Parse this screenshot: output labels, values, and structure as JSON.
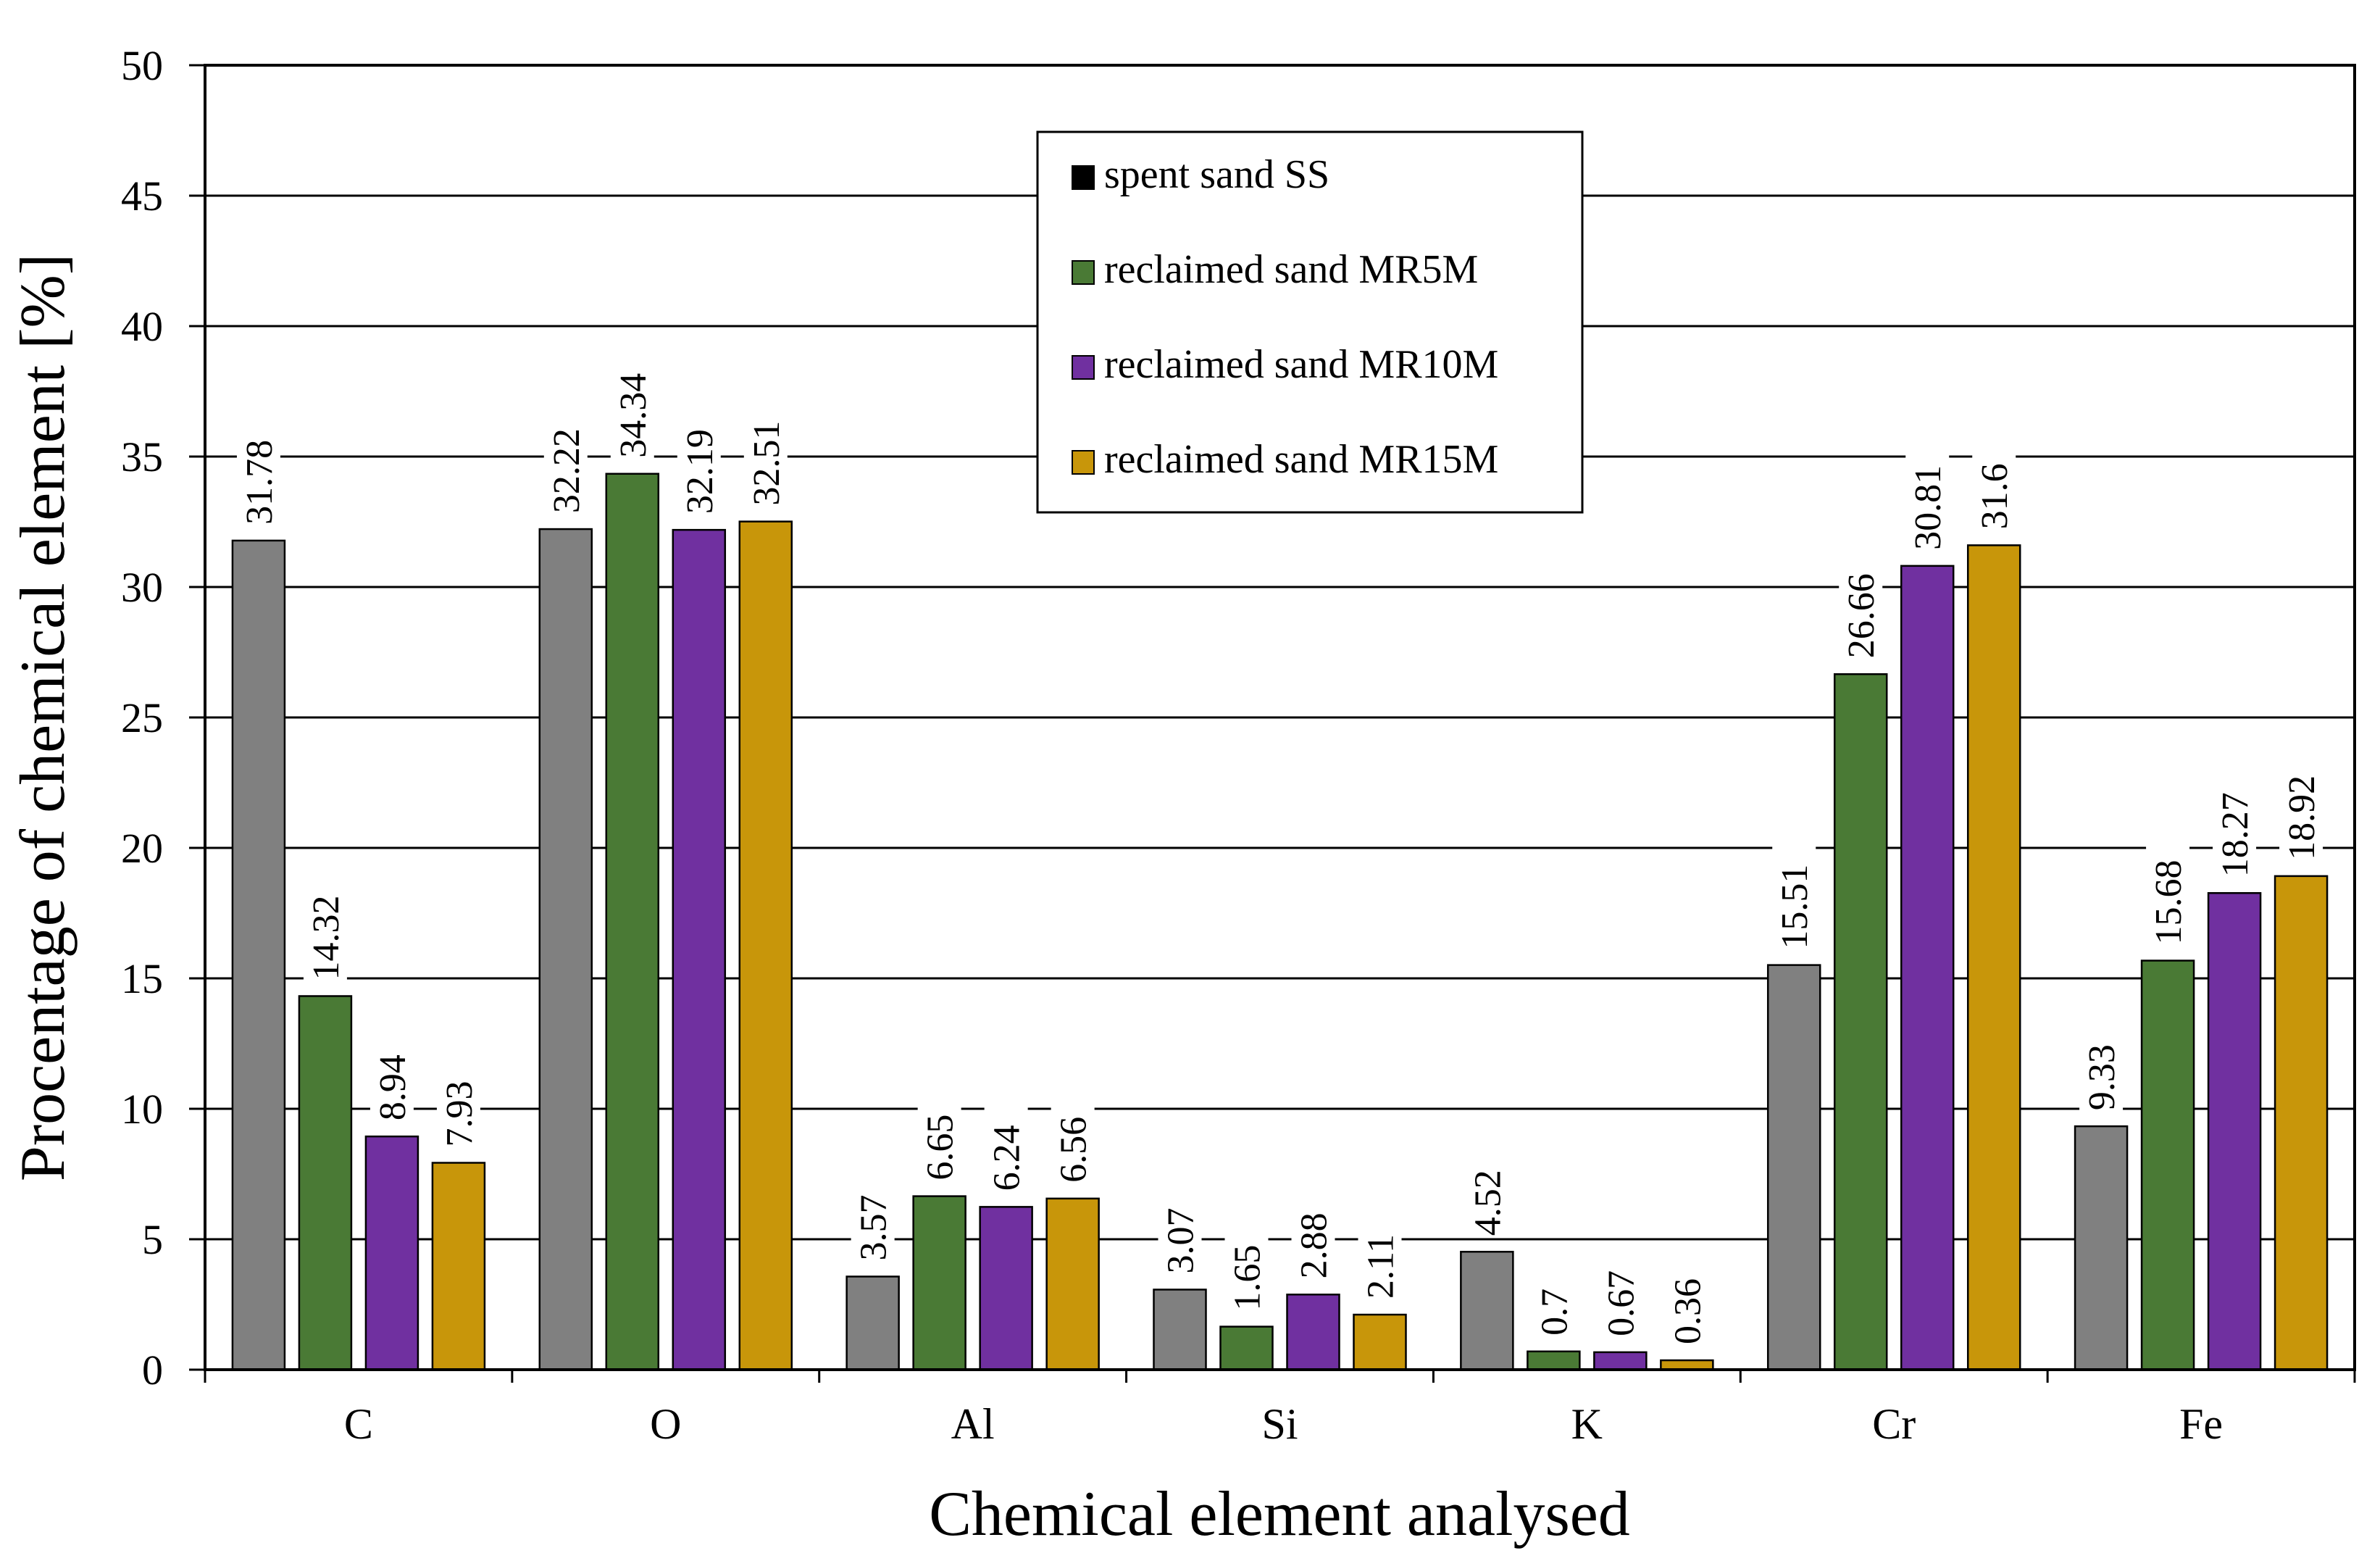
{
  "chart_data": {
    "type": "bar",
    "title": "",
    "xlabel": "Chemical element analysed",
    "ylabel": "Procentage of chemical element  [%]",
    "ylim": [
      0,
      50
    ],
    "yticks": [
      0,
      5,
      10,
      15,
      20,
      25,
      30,
      35,
      40,
      45,
      50
    ],
    "grid": true,
    "legend_position": "top-center",
    "categories": [
      "C",
      "O",
      "Al",
      "Si",
      "K",
      "Cr",
      "Fe"
    ],
    "series": [
      {
        "name": "spent sand SS",
        "color": "#808080",
        "values": [
          31.78,
          32.22,
          3.57,
          3.07,
          4.52,
          15.51,
          9.33
        ]
      },
      {
        "name": "reclaimed sand MR5M",
        "color": "#4a7a35",
        "values": [
          14.32,
          34.34,
          6.65,
          1.65,
          0.7,
          26.66,
          15.68
        ]
      },
      {
        "name": "reclaimed sand MR10M",
        "color": "#7030a0",
        "values": [
          8.94,
          32.19,
          6.24,
          2.88,
          0.67,
          30.81,
          18.27
        ]
      },
      {
        "name": "reclaimed sand MR15M",
        "color": "#c8960a",
        "values": [
          7.93,
          32.51,
          6.56,
          2.11,
          0.36,
          31.6,
          18.92
        ]
      }
    ],
    "legend_swatch_colors": [
      "#000000",
      "#4a7a35",
      "#7030a0",
      "#c8960a"
    ]
  }
}
